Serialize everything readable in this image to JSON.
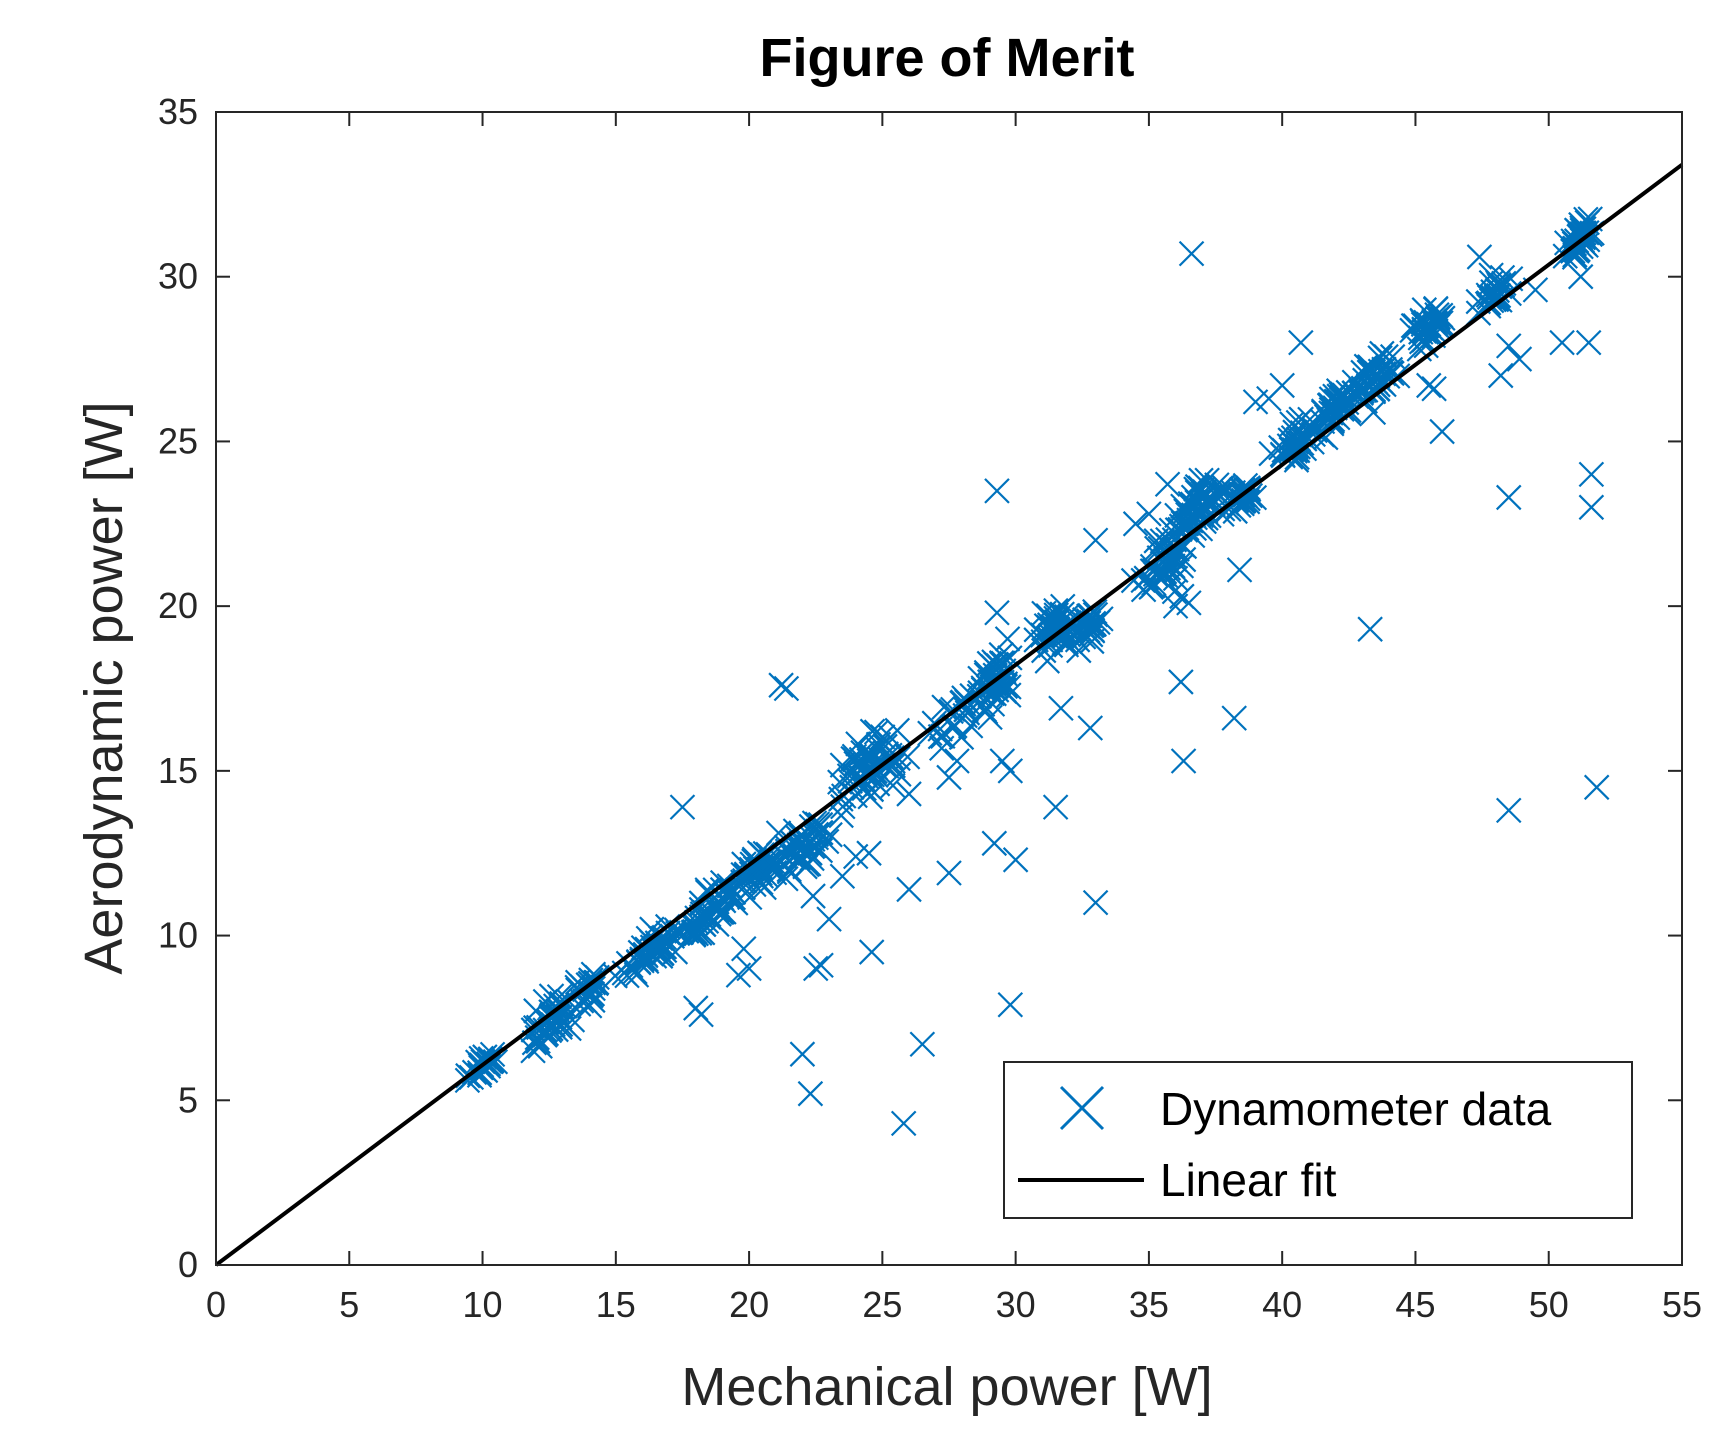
{
  "chart_data": {
    "type": "scatter",
    "title": "Figure of Merit",
    "xlabel": "Mechanical power [W]",
    "ylabel": "Aerodynamic power [W]",
    "xlim": [
      0,
      55
    ],
    "ylim": [
      0,
      35
    ],
    "xticks": [
      0,
      5,
      10,
      15,
      20,
      25,
      30,
      35,
      40,
      45,
      50,
      55
    ],
    "yticks": [
      0,
      5,
      10,
      15,
      20,
      25,
      30,
      35
    ],
    "grid": false,
    "legend_position": "bottom-right",
    "colors": {
      "scatter": "#0072BD",
      "fit": "#000000",
      "axes": "#262626"
    },
    "series": [
      {
        "name": "Dynamometer data",
        "marker": "x",
        "clusters": [
          {
            "x": 10.0,
            "y": 6.0,
            "n": 25,
            "sx": 0.4,
            "sy": 0.25
          },
          {
            "x": 12.5,
            "y": 7.4,
            "n": 40,
            "sx": 0.6,
            "sy": 0.4
          },
          {
            "x": 14.0,
            "y": 8.4,
            "n": 25,
            "sx": 0.5,
            "sy": 0.3
          },
          {
            "x": 16.5,
            "y": 9.6,
            "n": 45,
            "sx": 0.8,
            "sy": 0.35
          },
          {
            "x": 18.5,
            "y": 10.7,
            "n": 45,
            "sx": 0.7,
            "sy": 0.4
          },
          {
            "x": 20.2,
            "y": 11.8,
            "n": 45,
            "sx": 0.8,
            "sy": 0.45
          },
          {
            "x": 22.0,
            "y": 12.7,
            "n": 45,
            "sx": 0.7,
            "sy": 0.5
          },
          {
            "x": 24.5,
            "y": 15.1,
            "n": 65,
            "sx": 0.8,
            "sy": 0.6
          },
          {
            "x": 28.0,
            "y": 16.8,
            "n": 30,
            "sx": 0.8,
            "sy": 0.5
          },
          {
            "x": 29.2,
            "y": 17.8,
            "n": 45,
            "sx": 0.5,
            "sy": 0.5
          },
          {
            "x": 31.5,
            "y": 19.3,
            "n": 40,
            "sx": 0.6,
            "sy": 0.45
          },
          {
            "x": 32.8,
            "y": 19.5,
            "n": 25,
            "sx": 0.4,
            "sy": 0.4
          },
          {
            "x": 35.5,
            "y": 21.2,
            "n": 45,
            "sx": 0.7,
            "sy": 0.6
          },
          {
            "x": 37.0,
            "y": 23.1,
            "n": 65,
            "sx": 0.6,
            "sy": 0.45
          },
          {
            "x": 38.5,
            "y": 23.3,
            "n": 30,
            "sx": 0.4,
            "sy": 0.35
          },
          {
            "x": 40.5,
            "y": 24.8,
            "n": 35,
            "sx": 0.5,
            "sy": 0.4
          },
          {
            "x": 42.0,
            "y": 26.0,
            "n": 40,
            "sx": 0.5,
            "sy": 0.45
          },
          {
            "x": 43.5,
            "y": 27.0,
            "n": 45,
            "sx": 0.5,
            "sy": 0.5
          },
          {
            "x": 45.5,
            "y": 28.5,
            "n": 40,
            "sx": 0.4,
            "sy": 0.4
          },
          {
            "x": 48.0,
            "y": 29.5,
            "n": 30,
            "sx": 0.4,
            "sy": 0.3
          },
          {
            "x": 51.2,
            "y": 31.2,
            "n": 40,
            "sx": 0.4,
            "sy": 0.35
          }
        ],
        "outliers": [
          [
            17.5,
            13.9
          ],
          [
            18.0,
            7.8
          ],
          [
            18.2,
            7.6
          ],
          [
            21.2,
            17.6
          ],
          [
            21.4,
            17.5
          ],
          [
            22.0,
            6.4
          ],
          [
            22.3,
            5.2
          ],
          [
            22.5,
            9.0
          ],
          [
            22.7,
            9.1
          ],
          [
            22.4,
            11.2
          ],
          [
            23.0,
            10.5
          ],
          [
            23.5,
            11.8
          ],
          [
            24.0,
            12.4
          ],
          [
            24.5,
            12.5
          ],
          [
            24.6,
            9.5
          ],
          [
            25.8,
            4.3
          ],
          [
            26.0,
            11.4
          ],
          [
            26.5,
            6.7
          ],
          [
            26.0,
            14.3
          ],
          [
            27.5,
            11.9
          ],
          [
            27.5,
            14.8
          ],
          [
            27.8,
            15.3
          ],
          [
            19.6,
            8.8
          ],
          [
            19.8,
            9.6
          ],
          [
            20.0,
            9.0
          ],
          [
            29.2,
            12.8
          ],
          [
            29.5,
            15.3
          ],
          [
            29.8,
            15.0
          ],
          [
            29.8,
            7.9
          ],
          [
            30.0,
            12.3
          ],
          [
            29.3,
            23.5
          ],
          [
            29.3,
            19.8
          ],
          [
            31.5,
            13.9
          ],
          [
            31.7,
            16.9
          ],
          [
            32.0,
            19.5
          ],
          [
            32.8,
            16.3
          ],
          [
            33.0,
            11.0
          ],
          [
            33.0,
            22.0
          ],
          [
            34.5,
            22.5
          ],
          [
            35.0,
            22.8
          ],
          [
            35.7,
            23.7
          ],
          [
            36.0,
            20.0
          ],
          [
            36.2,
            17.7
          ],
          [
            36.3,
            15.3
          ],
          [
            36.5,
            20.1
          ],
          [
            36.6,
            30.7
          ],
          [
            38.2,
            16.6
          ],
          [
            38.4,
            21.1
          ],
          [
            39.0,
            26.2
          ],
          [
            39.5,
            26.3
          ],
          [
            40.0,
            26.7
          ],
          [
            40.7,
            28.0
          ],
          [
            41.5,
            25.2
          ],
          [
            43.3,
            19.3
          ],
          [
            45.5,
            26.7
          ],
          [
            45.7,
            26.6
          ],
          [
            46.0,
            25.3
          ],
          [
            47.4,
            30.6
          ],
          [
            48.2,
            27.0
          ],
          [
            48.5,
            27.9
          ],
          [
            48.5,
            13.8
          ],
          [
            48.5,
            23.3
          ],
          [
            48.9,
            27.5
          ],
          [
            49.5,
            29.6
          ],
          [
            50.5,
            28.0
          ],
          [
            51.2,
            30.0
          ],
          [
            51.5,
            28.0
          ],
          [
            51.6,
            24.0
          ],
          [
            51.6,
            23.0
          ],
          [
            51.8,
            14.5
          ]
        ]
      },
      {
        "name": "Linear fit",
        "type": "line",
        "x": [
          0,
          55
        ],
        "y": [
          0,
          33.4
        ]
      }
    ]
  }
}
